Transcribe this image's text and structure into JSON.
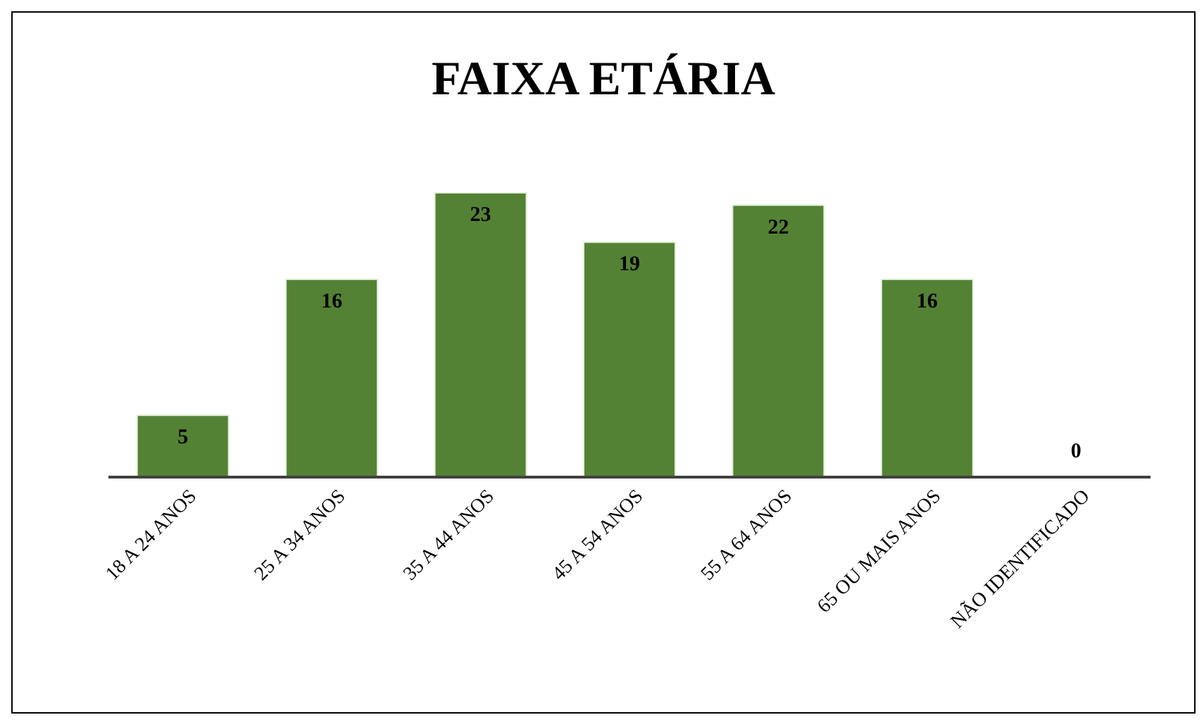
{
  "chart_data": {
    "type": "bar",
    "title": "FAIXA ETÁRIA",
    "categories": [
      "18 A 24 ANOS",
      "25 A 34 ANOS",
      "35 A 44 ANOS",
      "45 A 54 ANOS",
      "55 A 64 ANOS",
      "65 OU MAIS ANOS",
      "NÃO IDENTIFICADO"
    ],
    "values": [
      5,
      16,
      23,
      19,
      22,
      16,
      0
    ],
    "color": "#548235",
    "data_labels": true
  }
}
